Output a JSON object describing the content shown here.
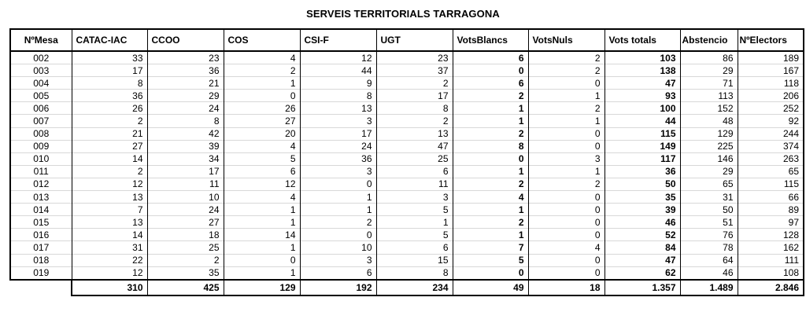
{
  "title": "SERVEIS TERRITORIALS TARRAGONA",
  "columns": [
    "NºMesa",
    "CATAC-IAC",
    "CCOO",
    "COS",
    "CSI-F",
    "UGT",
    "VotsBlancs",
    "VotsNuls",
    "Vots totals",
    "Abstencio",
    "NºElectors"
  ],
  "rows": [
    [
      "002",
      "33",
      "23",
      "4",
      "12",
      "23",
      "6",
      "2",
      "103",
      "86",
      "189"
    ],
    [
      "003",
      "17",
      "36",
      "2",
      "44",
      "37",
      "0",
      "2",
      "138",
      "29",
      "167"
    ],
    [
      "004",
      "8",
      "21",
      "1",
      "9",
      "2",
      "6",
      "0",
      "47",
      "71",
      "118"
    ],
    [
      "005",
      "36",
      "29",
      "0",
      "8",
      "17",
      "2",
      "1",
      "93",
      "113",
      "206"
    ],
    [
      "006",
      "26",
      "24",
      "26",
      "13",
      "8",
      "1",
      "2",
      "100",
      "152",
      "252"
    ],
    [
      "007",
      "2",
      "8",
      "27",
      "3",
      "2",
      "1",
      "1",
      "44",
      "48",
      "92"
    ],
    [
      "008",
      "21",
      "42",
      "20",
      "17",
      "13",
      "2",
      "0",
      "115",
      "129",
      "244"
    ],
    [
      "009",
      "27",
      "39",
      "4",
      "24",
      "47",
      "8",
      "0",
      "149",
      "225",
      "374"
    ],
    [
      "010",
      "14",
      "34",
      "5",
      "36",
      "25",
      "0",
      "3",
      "117",
      "146",
      "263"
    ],
    [
      "011",
      "2",
      "17",
      "6",
      "3",
      "6",
      "1",
      "1",
      "36",
      "29",
      "65"
    ],
    [
      "012",
      "12",
      "11",
      "12",
      "0",
      "11",
      "2",
      "2",
      "50",
      "65",
      "115"
    ],
    [
      "013",
      "13",
      "10",
      "4",
      "1",
      "3",
      "4",
      "0",
      "35",
      "31",
      "66"
    ],
    [
      "014",
      "7",
      "24",
      "1",
      "1",
      "5",
      "1",
      "0",
      "39",
      "50",
      "89"
    ],
    [
      "015",
      "13",
      "27",
      "1",
      "2",
      "1",
      "2",
      "0",
      "46",
      "51",
      "97"
    ],
    [
      "016",
      "14",
      "18",
      "14",
      "0",
      "5",
      "1",
      "0",
      "52",
      "76",
      "128"
    ],
    [
      "017",
      "31",
      "25",
      "1",
      "10",
      "6",
      "7",
      "4",
      "84",
      "78",
      "162"
    ],
    [
      "018",
      "22",
      "2",
      "0",
      "3",
      "15",
      "5",
      "0",
      "47",
      "64",
      "111"
    ],
    [
      "019",
      "12",
      "35",
      "1",
      "6",
      "8",
      "0",
      "0",
      "62",
      "46",
      "108"
    ]
  ],
  "totals": [
    "310",
    "425",
    "129",
    "192",
    "234",
    "49",
    "18",
    "1.357",
    "1.489",
    "2.846"
  ]
}
